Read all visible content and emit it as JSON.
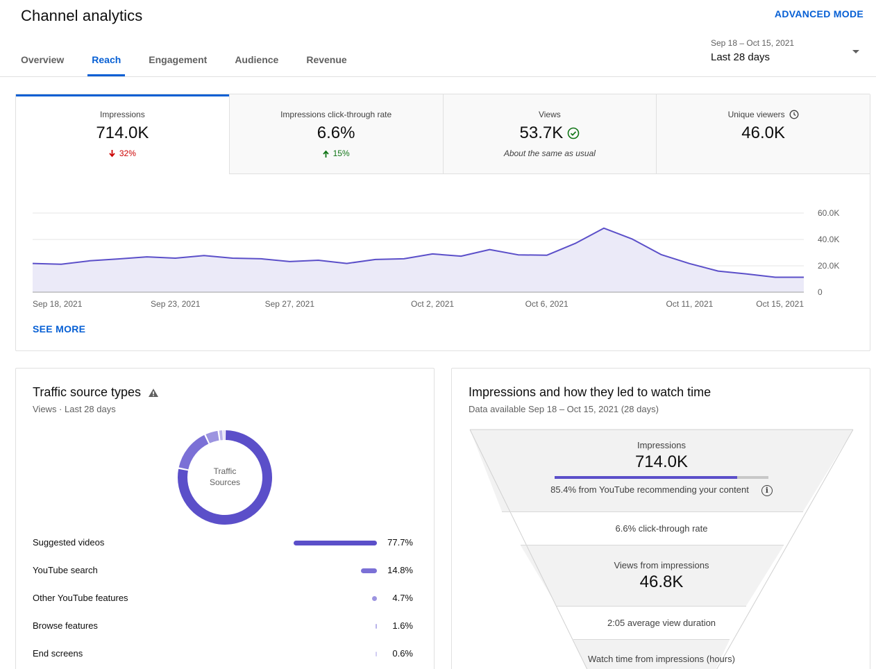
{
  "header": {
    "title": "Channel analytics",
    "advanced_mode": "ADVANCED MODE",
    "tabs": [
      {
        "label": "Overview"
      },
      {
        "label": "Reach"
      },
      {
        "label": "Engagement"
      },
      {
        "label": "Audience"
      },
      {
        "label": "Revenue"
      }
    ],
    "active_tab": "Reach",
    "date_range": "Sep 18 – Oct 15, 2021",
    "date_label": "Last 28 days"
  },
  "metrics": [
    {
      "label": "Impressions",
      "value": "714.0K",
      "delta": "32%",
      "delta_dir": "down",
      "active": true
    },
    {
      "label": "Impressions click-through rate",
      "value": "6.6%",
      "delta": "15%",
      "delta_dir": "up"
    },
    {
      "label": "Views",
      "value": "53.7K",
      "note": "About the same as usual",
      "status_icon": "check-circle-icon"
    },
    {
      "label": "Unique viewers",
      "value": "46.0K",
      "label_icon": "clock-icon"
    }
  ],
  "see_more": "SEE MORE",
  "chart_data": {
    "type": "area",
    "x": [
      "Sep 18, 2021",
      "Sep 19",
      "Sep 20",
      "Sep 21",
      "Sep 22",
      "Sep 23, 2021",
      "Sep 24",
      "Sep 25",
      "Sep 26",
      "Sep 27, 2021",
      "Sep 28",
      "Sep 29",
      "Sep 30",
      "Oct 1",
      "Oct 2, 2021",
      "Oct 3",
      "Oct 4",
      "Oct 5",
      "Oct 6, 2021",
      "Oct 7",
      "Oct 8",
      "Oct 9",
      "Oct 10",
      "Oct 11, 2021",
      "Oct 12",
      "Oct 13",
      "Oct 14",
      "Oct 15, 2021"
    ],
    "x_tick_labels": [
      "Sep 18, 2021",
      "Sep 23, 2021",
      "Sep 27, 2021",
      "Oct 2, 2021",
      "Oct 6, 2021",
      "Oct 11, 2021",
      "Oct 15, 2021"
    ],
    "x_tick_index": [
      0,
      5,
      9,
      14,
      18,
      23,
      27
    ],
    "values": [
      21800,
      21200,
      23800,
      25200,
      26800,
      25800,
      27800,
      25800,
      25300,
      23200,
      24200,
      21800,
      24800,
      25300,
      29000,
      27300,
      32300,
      28300,
      28000,
      37000,
      48500,
      40200,
      28500,
      21700,
      16000,
      13800,
      11300,
      11300
    ],
    "y_ticks": [
      "0",
      "20.0K",
      "40.0K",
      "60.0K"
    ],
    "y_tick_values": [
      0,
      20000,
      40000,
      60000
    ],
    "ylim": [
      0,
      60000
    ],
    "color": "#5b4fc9",
    "fill": "#ebeaf8",
    "grid": true
  },
  "traffic": {
    "title": "Traffic source types",
    "title_icon": "warning-icon",
    "subtitle": "Views · Last 28 days",
    "donut_label_1": "Traffic",
    "donut_label_2": "Sources",
    "sources": [
      {
        "name": "Suggested videos",
        "pct": "77.7%",
        "value": 77.7,
        "color": "#5b4fc9"
      },
      {
        "name": "YouTube search",
        "pct": "14.8%",
        "value": 14.8,
        "color": "#7b70d6"
      },
      {
        "name": "Other YouTube features",
        "pct": "4.7%",
        "value": 4.7,
        "color": "#9c94e0"
      },
      {
        "name": "Browse features",
        "pct": "1.6%",
        "value": 1.6,
        "color": "#b9b3ea"
      },
      {
        "name": "End screens",
        "pct": "0.6%",
        "value": 0.6,
        "color": "#d2cef2"
      }
    ]
  },
  "funnel": {
    "title": "Impressions and how they led to watch time",
    "subtitle": "Data available Sep 18 – Oct 15, 2021 (28 days)",
    "impressions_label": "Impressions",
    "impressions_value": "714.0K",
    "recommend_text": "85.4% from YouTube recommending your content",
    "recommend_fraction": 0.854,
    "ctr_text": "6.6% click-through rate",
    "views_label": "Views from impressions",
    "views_value": "46.8K",
    "avd_text": "2:05 average view duration",
    "watch_label": "Watch time from impressions (hours)"
  }
}
